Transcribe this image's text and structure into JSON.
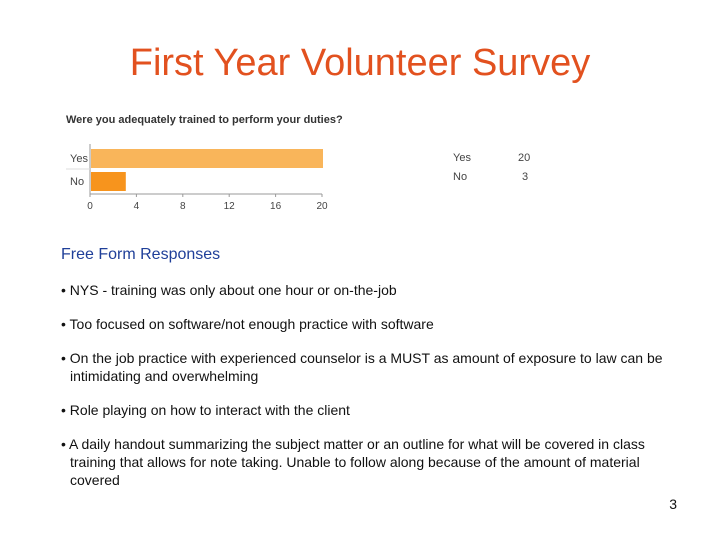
{
  "slide": {
    "title": "First Year Volunteer Survey",
    "page_number": "3"
  },
  "chart_data": {
    "type": "bar",
    "orientation": "horizontal",
    "title": "Were you adequately trained to perform your duties?",
    "categories": [
      "Yes",
      "No"
    ],
    "values": [
      20,
      3
    ],
    "xlim": [
      0,
      20
    ],
    "x_ticks": [
      "0",
      "4",
      "8",
      "12",
      "16",
      "20"
    ],
    "colors": [
      "#f9b55a",
      "#f7941d"
    ],
    "legend": [
      {
        "label": "Yes",
        "value": "20"
      },
      {
        "label": "No",
        "value": "3"
      }
    ],
    "grid": false
  },
  "free_form": {
    "heading": "Free Form Responses",
    "responses": [
      "• NYS - training was only about one hour or on-the-job",
      "• Too focused on software/not enough practice with software",
      "• On the job practice with experienced counselor is a MUST as amount of exposure to law can be intimidating and overwhelming",
      "• Role playing on how to interact with the client",
      "• A daily handout summarizing the subject matter or an outline for what will be covered in class training that allows for note taking. Unable to follow along because of the amount of material covered"
    ]
  }
}
